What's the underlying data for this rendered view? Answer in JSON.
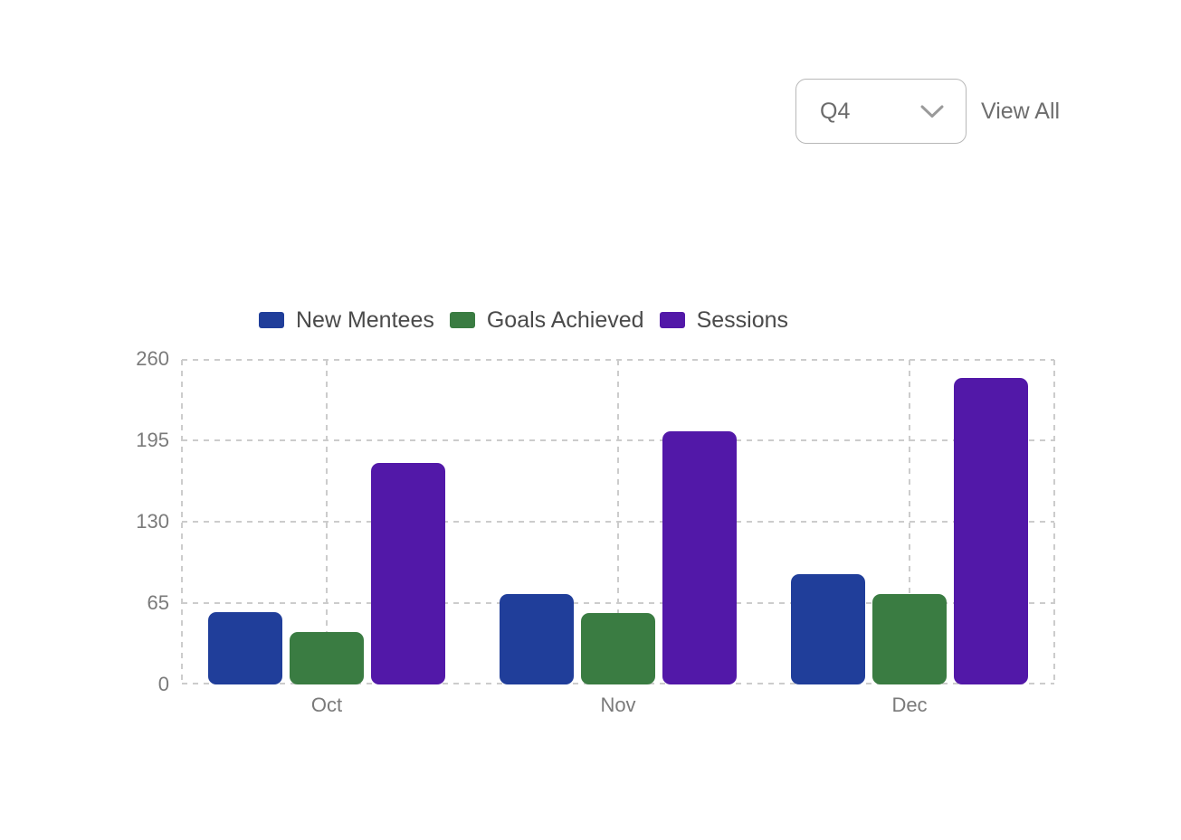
{
  "header": {
    "quarter_dropdown": {
      "selected": "Q4"
    },
    "view_all_label": "View All"
  },
  "chart_data": {
    "type": "bar",
    "title": "",
    "categories": [
      "Oct",
      "Nov",
      "Dec"
    ],
    "series": [
      {
        "name": "New Mentees",
        "color": "#203E9A",
        "values": [
          58,
          72,
          88
        ]
      },
      {
        "name": "Goals Achieved",
        "color": "#3A7C42",
        "values": [
          42,
          57,
          72
        ]
      },
      {
        "name": "Sessions",
        "color": "#5218A8",
        "values": [
          177,
          202,
          245
        ]
      }
    ],
    "xlabel": "",
    "ylabel": "",
    "ylim": [
      0,
      260
    ],
    "yticks": [
      260,
      195,
      130,
      65,
      0
    ],
    "grid": true,
    "grid_style": "dashed",
    "legend_position": "top"
  },
  "theme": {
    "background": "#ffffff",
    "grid_color": "#cccccc",
    "axis_text_color": "#7a7a7a",
    "legend_text_color": "#4a4a4a",
    "control_text_color": "#6b6b6b",
    "dropdown_border_color": "#b8b8b8",
    "chevron_icon": "chevron-down"
  }
}
